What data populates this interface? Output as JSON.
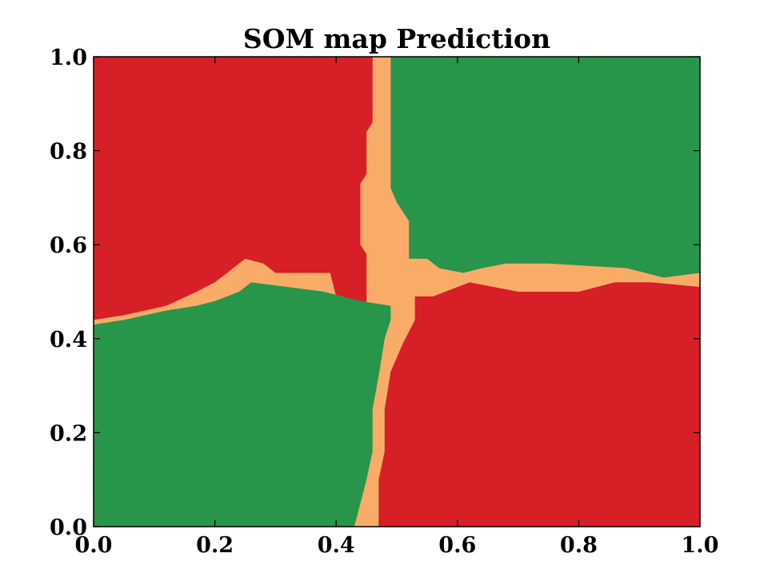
{
  "chart_data": {
    "type": "heatmap",
    "title": "SOM map Prediction",
    "xlabel": "",
    "ylabel": "",
    "xlim": [
      0.0,
      1.0
    ],
    "ylim": [
      0.0,
      1.0
    ],
    "xticks": [
      "0.0",
      "0.2",
      "0.4",
      "0.6",
      "0.8",
      "1.0"
    ],
    "yticks": [
      "0.0",
      "0.2",
      "0.4",
      "0.6",
      "0.8",
      "1.0"
    ],
    "xtick_values": [
      0.0,
      0.2,
      0.4,
      0.6,
      0.8,
      1.0
    ],
    "ytick_values": [
      0.0,
      0.2,
      0.4,
      0.6,
      0.8,
      1.0
    ],
    "grid": false,
    "legend": false,
    "colors": {
      "class_red": "#d61f26",
      "class_green": "#27954a",
      "boundary": "#f9ac68",
      "axes": "#000000",
      "background": "#ffffff"
    },
    "regions": [
      {
        "class": "boundary",
        "color": "#f9ac68",
        "polygon": [
          [
            0.0,
            0.0
          ],
          [
            1.0,
            0.0
          ],
          [
            1.0,
            1.0
          ],
          [
            0.0,
            1.0
          ]
        ]
      },
      {
        "class": "red",
        "color": "#d61f26",
        "polygon": [
          [
            0.0,
            1.0
          ],
          [
            0.46,
            1.0
          ],
          [
            0.46,
            0.86
          ],
          [
            0.45,
            0.84
          ],
          [
            0.45,
            0.75
          ],
          [
            0.44,
            0.73
          ],
          [
            0.44,
            0.6
          ],
          [
            0.45,
            0.58
          ],
          [
            0.45,
            0.47
          ],
          [
            0.4,
            0.49
          ],
          [
            0.39,
            0.54
          ],
          [
            0.3,
            0.54
          ],
          [
            0.28,
            0.56
          ],
          [
            0.25,
            0.57
          ],
          [
            0.22,
            0.54
          ],
          [
            0.2,
            0.52
          ],
          [
            0.17,
            0.5
          ],
          [
            0.12,
            0.47
          ],
          [
            0.05,
            0.45
          ],
          [
            0.0,
            0.44
          ]
        ]
      },
      {
        "class": "green",
        "color": "#27954a",
        "polygon": [
          [
            0.49,
            1.0
          ],
          [
            1.0,
            1.0
          ],
          [
            1.0,
            0.54
          ],
          [
            0.94,
            0.53
          ],
          [
            0.88,
            0.55
          ],
          [
            0.75,
            0.56
          ],
          [
            0.68,
            0.56
          ],
          [
            0.64,
            0.55
          ],
          [
            0.61,
            0.54
          ],
          [
            0.57,
            0.55
          ],
          [
            0.55,
            0.57
          ],
          [
            0.52,
            0.57
          ],
          [
            0.52,
            0.65
          ],
          [
            0.5,
            0.69
          ],
          [
            0.49,
            0.72
          ]
        ]
      },
      {
        "class": "green",
        "color": "#27954a",
        "polygon": [
          [
            0.0,
            0.43
          ],
          [
            0.05,
            0.44
          ],
          [
            0.12,
            0.46
          ],
          [
            0.17,
            0.47
          ],
          [
            0.2,
            0.48
          ],
          [
            0.24,
            0.5
          ],
          [
            0.26,
            0.52
          ],
          [
            0.32,
            0.51
          ],
          [
            0.38,
            0.5
          ],
          [
            0.44,
            0.48
          ],
          [
            0.49,
            0.47
          ],
          [
            0.49,
            0.44
          ],
          [
            0.48,
            0.4
          ],
          [
            0.47,
            0.32
          ],
          [
            0.46,
            0.25
          ],
          [
            0.46,
            0.16
          ],
          [
            0.45,
            0.1
          ],
          [
            0.44,
            0.05
          ],
          [
            0.43,
            0.0
          ],
          [
            0.0,
            0.0
          ]
        ]
      },
      {
        "class": "red",
        "color": "#d61f26",
        "polygon": [
          [
            0.47,
            0.0
          ],
          [
            1.0,
            0.0
          ],
          [
            1.0,
            0.51
          ],
          [
            0.92,
            0.52
          ],
          [
            0.86,
            0.52
          ],
          [
            0.8,
            0.5
          ],
          [
            0.7,
            0.5
          ],
          [
            0.62,
            0.52
          ],
          [
            0.6,
            0.51
          ],
          [
            0.56,
            0.49
          ],
          [
            0.53,
            0.49
          ],
          [
            0.53,
            0.44
          ],
          [
            0.51,
            0.39
          ],
          [
            0.49,
            0.33
          ],
          [
            0.48,
            0.25
          ],
          [
            0.48,
            0.16
          ],
          [
            0.47,
            0.1
          ]
        ]
      }
    ]
  }
}
